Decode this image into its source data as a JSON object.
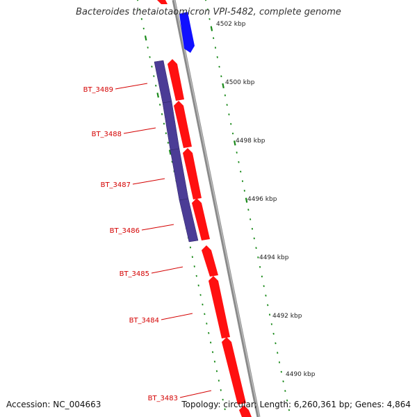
{
  "title": "Bacteroides thetaiotaomicron VPI-5482, complete genome",
  "accession_text": "Accession: NC_004663",
  "summary_text": "Topology: circular; Length: 6,260,361 bp; Genes: 4,864",
  "colors": {
    "backbone": "#8a8a8a",
    "forward_gene": "#ff1010",
    "reverse_gene": "#1010ff",
    "operon": "#4b3c96",
    "ticks": "#1a8a1a",
    "gene_label": "#d40000"
  },
  "position_labels": [
    "4502 kbp",
    "4500 kbp",
    "4498 kbp",
    "4496 kbp",
    "4494 kbp",
    "4492 kbp",
    "4490 kbp"
  ],
  "gene_labels": [
    "BT_3489",
    "BT_3488",
    "BT_3487",
    "BT_3486",
    "BT_3485",
    "BT_3484",
    "BT_3483"
  ]
}
